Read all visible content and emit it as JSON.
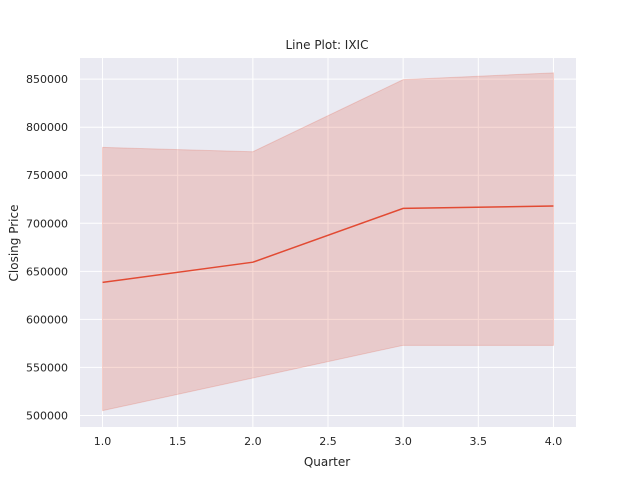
{
  "chart_data": {
    "type": "line",
    "title": "Line Plot: IXIC",
    "xlabel": "Quarter",
    "ylabel": "Closing Price",
    "x": [
      1.0,
      2.0,
      3.0,
      4.0
    ],
    "series": [
      {
        "values": [
          638500,
          659500,
          715500,
          718000
        ],
        "band_lower": [
          505000,
          539000,
          573000,
          573000
        ],
        "band_upper": [
          779000,
          774500,
          849500,
          856500
        ],
        "color": "#e24a33"
      }
    ],
    "xlim": [
      0.85,
      4.15
    ],
    "ylim": [
      488000,
      872000
    ],
    "xticks": [
      1.0,
      1.5,
      2.0,
      2.5,
      3.0,
      3.5,
      4.0
    ],
    "xtick_labels": [
      "1.0",
      "1.5",
      "2.0",
      "2.5",
      "3.0",
      "3.5",
      "4.0"
    ],
    "yticks": [
      500000,
      550000,
      600000,
      650000,
      700000,
      750000,
      800000,
      850000
    ],
    "ytick_labels": [
      "500000",
      "550000",
      "600000",
      "650000",
      "700000",
      "750000",
      "800000",
      "850000"
    ],
    "grid": true,
    "background": "#eaeaf2"
  }
}
